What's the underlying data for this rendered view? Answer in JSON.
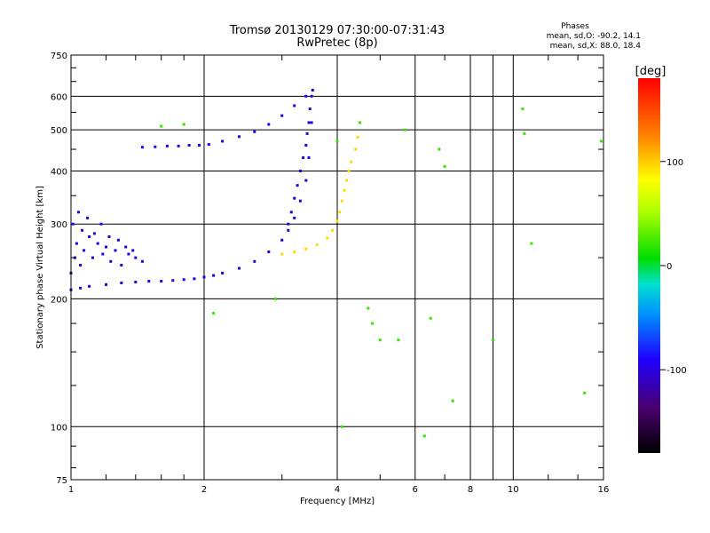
{
  "chart_data": {
    "type": "scatter",
    "title": "Tromsø 20130129 07:30:00-07:31:43",
    "subtitle": "RwPretec (8p)",
    "xlabel": "Frequency [MHz]",
    "ylabel": "Stationary phase Virtual Height [km]",
    "x_scale": "log",
    "y_scale": "log",
    "xlim": [
      1,
      16
    ],
    "ylim": [
      75,
      750
    ],
    "x_ticks": [
      1,
      2,
      4,
      6,
      8,
      10,
      16
    ],
    "x_tick_labels": [
      "1",
      "2",
      "4",
      "6",
      "8",
      "10",
      "16"
    ],
    "y_ticks": [
      75,
      100,
      200,
      300,
      400,
      500,
      600,
      750
    ],
    "y_tick_labels": [
      "75",
      "100",
      "200",
      "300",
      "400",
      "500",
      "600",
      "750"
    ],
    "grid": true,
    "phases_box": {
      "heading": "Phases",
      "line_o": "mean, sd,O: -90.2, 14.1",
      "line_x": "mean, sd,X:  88.0, 18.4"
    },
    "colorbar": {
      "label": "[deg]",
      "range": [
        -180,
        180
      ],
      "ticks": [
        100,
        0,
        -100
      ],
      "tick_labels": [
        "100",
        "0",
        "-100"
      ]
    },
    "series": [
      {
        "trace": "low-E-spread",
        "phase": -100,
        "x": [
          1.0,
          1.02,
          1.03,
          1.05,
          1.07,
          1.1,
          1.12,
          1.15,
          1.18,
          1.2,
          1.23,
          1.26,
          1.3,
          1.35,
          1.4,
          1.45,
          1.01,
          1.04,
          1.06,
          1.09,
          1.13,
          1.17,
          1.22,
          1.28,
          1.33,
          1.38
        ],
        "y": [
          230,
          250,
          270,
          240,
          260,
          280,
          250,
          270,
          255,
          265,
          245,
          260,
          240,
          255,
          250,
          245,
          300,
          320,
          290,
          310,
          285,
          300,
          280,
          275,
          265,
          260
        ]
      },
      {
        "trace": "o-lower",
        "phase": -100,
        "x": [
          1.0,
          1.05,
          1.1,
          1.2,
          1.3,
          1.4,
          1.5,
          1.6,
          1.7,
          1.8,
          1.9,
          2.0,
          2.1,
          2.2,
          2.4,
          2.6,
          2.8,
          3.0,
          3.1,
          3.2,
          3.3,
          3.4,
          3.45,
          3.5
        ],
        "y": [
          210,
          212,
          214,
          216,
          218,
          219,
          220,
          220,
          221,
          222,
          223,
          225,
          227,
          230,
          236,
          245,
          258,
          275,
          290,
          310,
          340,
          380,
          430,
          520
        ]
      },
      {
        "trace": "o-lower-spread",
        "phase": -105,
        "x": [
          3.1,
          3.15,
          3.2,
          3.25,
          3.3,
          3.35,
          3.4,
          3.42,
          3.45,
          3.47,
          3.5,
          3.52
        ],
        "y": [
          300,
          320,
          345,
          370,
          400,
          430,
          460,
          490,
          520,
          560,
          600,
          620
        ]
      },
      {
        "trace": "o-upper",
        "phase": -95,
        "x": [
          1.45,
          1.55,
          1.65,
          1.75,
          1.85,
          1.95,
          2.05,
          2.2,
          2.4,
          2.6,
          2.8,
          3.0,
          3.2,
          3.4
        ],
        "y": [
          455,
          456,
          458,
          458,
          460,
          460,
          462,
          470,
          482,
          495,
          515,
          540,
          570,
          600
        ]
      },
      {
        "trace": "x-trace",
        "phase": 95,
        "x": [
          3.0,
          3.2,
          3.4,
          3.6,
          3.8,
          3.9,
          4.0,
          4.05,
          4.1,
          4.15,
          4.2,
          4.25,
          4.3,
          4.4,
          4.45
        ],
        "y": [
          255,
          258,
          262,
          268,
          278,
          290,
          305,
          320,
          340,
          360,
          380,
          400,
          420,
          450,
          480
        ]
      },
      {
        "trace": "noise",
        "phase": 20,
        "x": [
          1.6,
          1.8,
          2.1,
          2.9,
          4.0,
          4.1,
          4.5,
          4.7,
          4.8,
          5.0,
          5.5,
          5.7,
          6.3,
          6.5,
          6.8,
          7.0,
          7.3,
          9.0,
          10.5,
          10.6,
          11.0,
          14.5,
          15.8
        ],
        "y": [
          510,
          515,
          185,
          200,
          470,
          100,
          520,
          190,
          175,
          160,
          160,
          500,
          95,
          180,
          450,
          410,
          115,
          160,
          560,
          490,
          270,
          120,
          470
        ]
      }
    ]
  }
}
